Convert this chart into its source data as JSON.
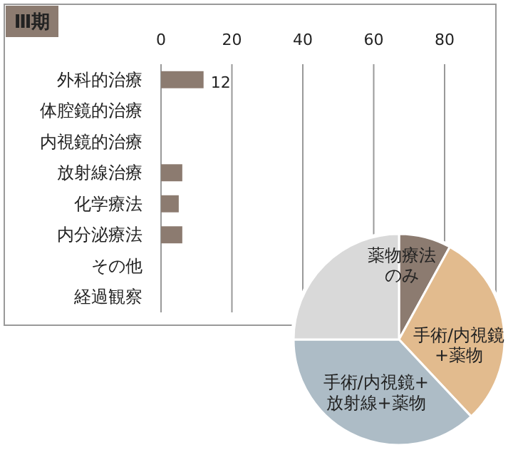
{
  "chart_data": [
    {
      "type": "bar",
      "title": "Ⅲ期",
      "orientation": "horizontal",
      "categories": [
        "外科的治療",
        "体腔鏡的治療",
        "内視鏡的治療",
        "放射線治療",
        "化学療法",
        "内分泌療法",
        "その他",
        "経過観察"
      ],
      "values": [
        12,
        0,
        0,
        6,
        5,
        6,
        0,
        0
      ],
      "value_labels": [
        "12",
        null,
        null,
        null,
        null,
        null,
        null,
        null
      ],
      "color": "#8c7b70",
      "xlim": [
        0,
        80
      ],
      "xticks": [
        0,
        20,
        40,
        60,
        80
      ],
      "grid": "x"
    },
    {
      "type": "pie",
      "categories": [
        "薬物療法のみ",
        "手術/内視鏡+薬物",
        "手術/内視鏡+放射線+薬物",
        null
      ],
      "values": [
        8,
        30,
        37,
        25
      ],
      "colors": [
        "#8c7b70",
        "#e2bb8e",
        "#adbcc6",
        "#d9d9d9"
      ]
    }
  ]
}
